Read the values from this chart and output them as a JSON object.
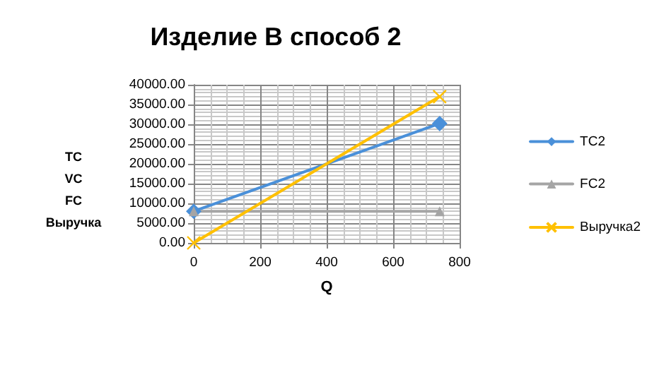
{
  "chart_data": {
    "type": "line",
    "title": "Изделие В способ 2",
    "xlabel": "Q",
    "ylabel": "TC\nVC\nFC\nВыручка",
    "x": [
      0,
      740
    ],
    "series": [
      {
        "name": "TC2",
        "color": "#4a90d9",
        "values": [
          8000,
          30200
        ],
        "marker": "diamond"
      },
      {
        "name": "FC2",
        "color": "#a5a5a5",
        "values": [
          8000,
          8000
        ],
        "marker": "triangle"
      },
      {
        "name": "Выручка2",
        "color": "#ffc000",
        "values": [
          0,
          37000
        ],
        "marker": "cross"
      }
    ],
    "xlim": [
      0,
      800
    ],
    "xticks": [
      0,
      200,
      400,
      600,
      800
    ],
    "ylim": [
      0,
      40000
    ],
    "yticks": [
      {
        "value": 0,
        "label": "0.00"
      },
      {
        "value": 5000,
        "label": "5000.00"
      },
      {
        "value": 10000,
        "label": "10000.00"
      },
      {
        "value": 15000,
        "label": "15000.00"
      },
      {
        "value": 20000,
        "label": "20000.00"
      },
      {
        "value": 25000,
        "label": "25000.00"
      },
      {
        "value": 30000,
        "label": "30000.00"
      },
      {
        "value": 35000,
        "label": "35000.00"
      },
      {
        "value": 40000,
        "label": "40000.00"
      }
    ],
    "grid": true,
    "legend": "right",
    "line_style": "solid"
  }
}
